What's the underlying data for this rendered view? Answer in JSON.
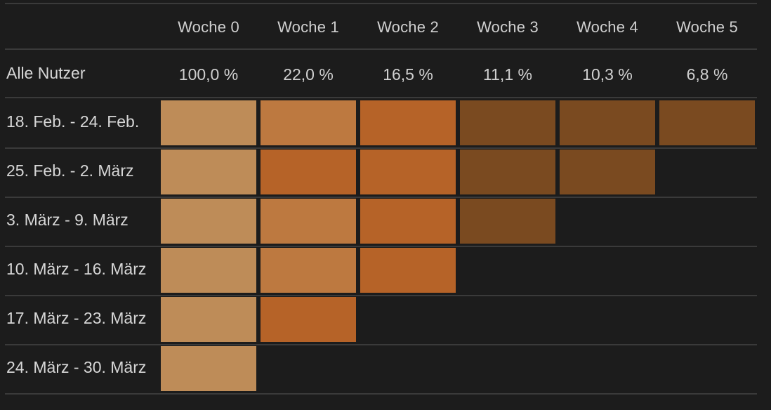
{
  "chart_data": {
    "type": "heatmap",
    "columns": [
      "Woche 0",
      "Woche 1",
      "Woche 2",
      "Woche 3",
      "Woche 4",
      "Woche 5"
    ],
    "summary": {
      "label": "Alle Nutzer",
      "values": [
        "100,0 %",
        "22,0 %",
        "16,5 %",
        "11,1 %",
        "10,3 %",
        "6,8 %"
      ]
    },
    "rows": [
      {
        "label": "18. Feb. - 24. Feb.",
        "levels": [
          4,
          3,
          2,
          1,
          1,
          1
        ]
      },
      {
        "label": "25. Feb. - 2. März",
        "levels": [
          4,
          2,
          2,
          1,
          1
        ]
      },
      {
        "label": "3. März - 9. März",
        "levels": [
          4,
          3,
          2,
          1
        ]
      },
      {
        "label": "10. März - 16. März",
        "levels": [
          4,
          3,
          2
        ]
      },
      {
        "label": "17. März - 23. März",
        "levels": [
          4,
          2
        ]
      },
      {
        "label": "24. März - 30. März",
        "levels": [
          4
        ]
      }
    ],
    "level_colors": {
      "1": "#7a4a20",
      "2": "#b66328",
      "3": "#bd7940",
      "4": "#be8c58"
    },
    "background": "#1c1c1c",
    "grid_color": "#3a3a3a"
  }
}
